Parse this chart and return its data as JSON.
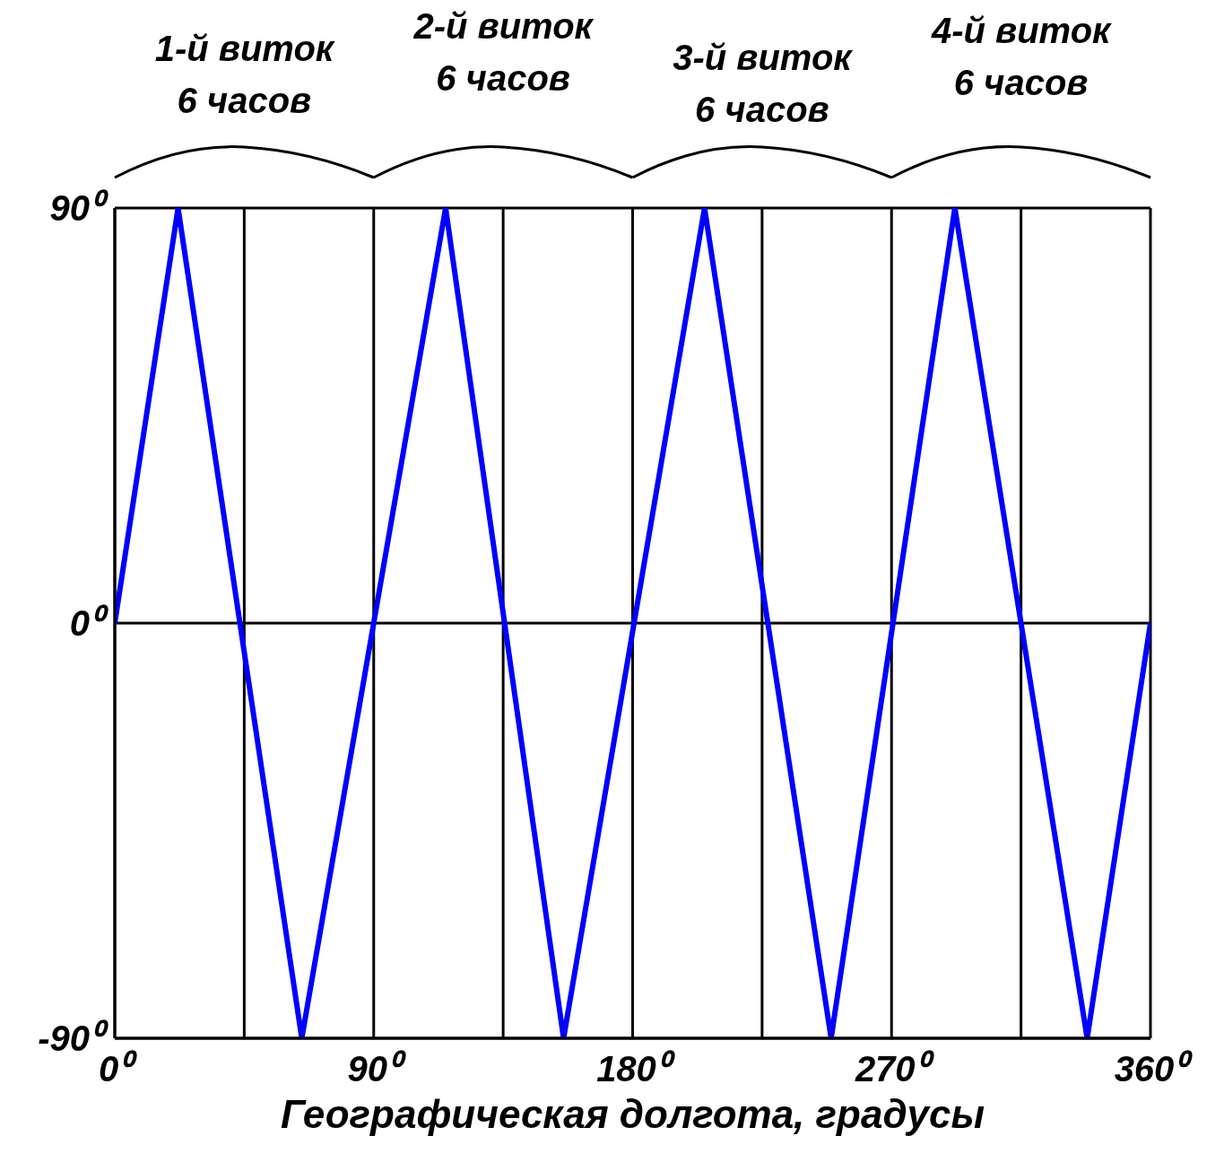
{
  "chart_data": {
    "type": "line",
    "xlabel": "Географическая долгота, градусы",
    "annotations": [
      "1-й виток\n6 часов",
      "2-й виток\n6 часов",
      "3-й виток\n6 часов",
      "4-й виток\n6 часов"
    ],
    "x": [
      0,
      22,
      65,
      115,
      156,
      205,
      249,
      292,
      338,
      360
    ],
    "series": [
      {
        "color": "#0000ff",
        "values": [
          0,
          90,
          -90,
          90,
          -90,
          90,
          -90,
          90,
          -90,
          0
        ]
      }
    ],
    "xlim": [
      0,
      360
    ],
    "xticks": [
      {
        "value": 0,
        "label": "0⁰"
      },
      {
        "value": 45,
        "label": null
      },
      {
        "value": 90,
        "label": "90⁰"
      },
      {
        "value": 135,
        "label": null
      },
      {
        "value": 180,
        "label": "180⁰"
      },
      {
        "value": 225,
        "label": null
      },
      {
        "value": 270,
        "label": "270⁰"
      },
      {
        "value": 315,
        "label": null
      },
      {
        "value": 360,
        "label": "360⁰"
      }
    ],
    "ylim": [
      -90,
      90
    ],
    "yticks": [
      {
        "value": -90,
        "label": "-90⁰"
      },
      {
        "value": 0,
        "label": "0⁰"
      },
      {
        "value": 90,
        "label": "90⁰"
      }
    ],
    "grid": true,
    "marker": "none",
    "line_style": "solid",
    "legend": false
  }
}
